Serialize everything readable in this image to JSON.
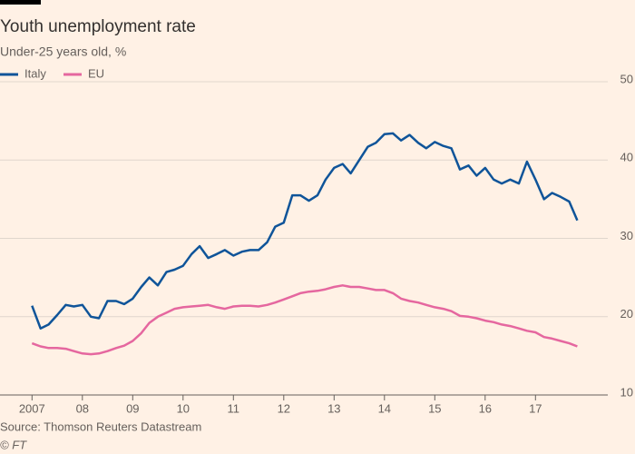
{
  "chart_data": {
    "type": "line",
    "title": "Youth unemployment rate",
    "subtitle": "Under-25 years old, %",
    "source": "Source: Thomson Reuters Datastream",
    "credit": "© FT",
    "x": [
      2007,
      2007.17,
      2007.33,
      2007.5,
      2007.67,
      2007.83,
      2008,
      2008.17,
      2008.33,
      2008.5,
      2008.67,
      2008.83,
      2009,
      2009.17,
      2009.33,
      2009.5,
      2009.67,
      2009.83,
      2010,
      2010.17,
      2010.33,
      2010.5,
      2010.67,
      2010.83,
      2011,
      2011.17,
      2011.33,
      2011.5,
      2011.67,
      2011.83,
      2012,
      2012.17,
      2012.33,
      2012.5,
      2012.67,
      2012.83,
      2013,
      2013.17,
      2013.33,
      2013.5,
      2013.67,
      2013.83,
      2014,
      2014.17,
      2014.33,
      2014.5,
      2014.67,
      2014.83,
      2015,
      2015.17,
      2015.33,
      2015.5,
      2015.67,
      2015.83,
      2016,
      2016.17,
      2016.33,
      2016.5,
      2016.67,
      2016.83,
      2017,
      2017.17,
      2017.33,
      2017.5,
      2017.67,
      2017.83
    ],
    "series": [
      {
        "name": "Italy",
        "color": "#0f5499",
        "values": [
          21.4,
          18.5,
          19.0,
          20.2,
          21.5,
          21.3,
          21.5,
          20.0,
          19.8,
          22.0,
          22.0,
          21.6,
          22.3,
          23.8,
          25.0,
          24.0,
          25.7,
          26.0,
          26.5,
          28.0,
          29.0,
          27.5,
          28.0,
          28.5,
          27.8,
          28.3,
          28.5,
          28.5,
          29.5,
          31.5,
          32.0,
          35.5,
          35.5,
          34.8,
          35.5,
          37.5,
          39.0,
          39.5,
          38.3,
          40.0,
          41.7,
          42.2,
          43.3,
          43.4,
          42.5,
          43.2,
          42.2,
          41.5,
          42.3,
          41.8,
          41.5,
          38.8,
          39.3,
          38.0,
          39.0,
          37.5,
          37.0,
          37.5,
          37.0,
          39.8,
          37.5,
          35.0,
          35.8,
          35.3,
          34.7,
          32.3
        ]
      },
      {
        "name": "EU",
        "color": "#e5679f",
        "values": [
          16.6,
          16.2,
          16.0,
          16.0,
          15.9,
          15.6,
          15.3,
          15.2,
          15.3,
          15.6,
          16.0,
          16.3,
          16.9,
          17.9,
          19.2,
          20.0,
          20.5,
          21.0,
          21.2,
          21.3,
          21.4,
          21.5,
          21.2,
          21.0,
          21.3,
          21.4,
          21.4,
          21.3,
          21.5,
          21.8,
          22.2,
          22.6,
          23.0,
          23.2,
          23.3,
          23.5,
          23.8,
          24.0,
          23.8,
          23.8,
          23.6,
          23.4,
          23.4,
          23.0,
          22.3,
          22.0,
          21.8,
          21.5,
          21.2,
          21.0,
          20.7,
          20.1,
          20.0,
          19.8,
          19.5,
          19.3,
          19.0,
          18.8,
          18.5,
          18.2,
          18.0,
          17.4,
          17.2,
          16.9,
          16.6,
          16.2
        ]
      }
    ],
    "xlim": [
      2006.4,
      2018.4
    ],
    "xticks": [
      {
        "value": 2007,
        "label": "2007"
      },
      {
        "value": 2008,
        "label": "08"
      },
      {
        "value": 2009,
        "label": "09"
      },
      {
        "value": 2010,
        "label": "10"
      },
      {
        "value": 2011,
        "label": "11"
      },
      {
        "value": 2012,
        "label": "12"
      },
      {
        "value": 2013,
        "label": "13"
      },
      {
        "value": 2014,
        "label": "14"
      },
      {
        "value": 2015,
        "label": "15"
      },
      {
        "value": 2016,
        "label": "16"
      },
      {
        "value": 2017,
        "label": "17"
      }
    ],
    "ylim": [
      10,
      50
    ],
    "yticks": [
      10,
      20,
      30,
      40,
      50
    ],
    "grid": true
  }
}
